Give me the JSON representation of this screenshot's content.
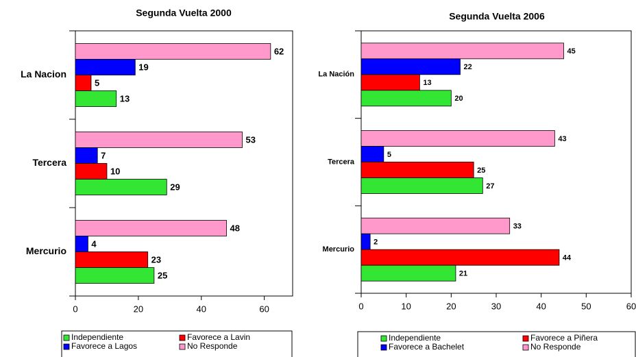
{
  "chart_data": [
    {
      "type": "bar",
      "orientation": "horizontal",
      "title": "Segunda Vuelta 2000",
      "categories": [
        "La Nacion",
        "Tercera",
        "Mercurio"
      ],
      "series": [
        {
          "name": "Independiente",
          "color": "#33e633",
          "values": [
            13,
            29,
            25
          ]
        },
        {
          "name": "Favorece a Lavin",
          "color": "#ff0000",
          "values": [
            5,
            10,
            23
          ]
        },
        {
          "name": "Favorece a Lagos",
          "color": "#0000ff",
          "values": [
            19,
            7,
            4
          ]
        },
        {
          "name": "No Responde",
          "color": "#ff99cc",
          "values": [
            62,
            53,
            48
          ]
        }
      ],
      "xlim": [
        0,
        69
      ],
      "xticks": [
        0,
        20,
        40,
        60
      ],
      "legend": "bottom"
    },
    {
      "type": "bar",
      "orientation": "horizontal",
      "title": "Segunda Vuelta 2006",
      "categories": [
        "La Nación",
        "Tercera",
        "Mercurio"
      ],
      "series": [
        {
          "name": "Independiente",
          "color": "#33e633",
          "values": [
            20,
            27,
            21
          ]
        },
        {
          "name": "Favorece a Piñera",
          "color": "#ff0000",
          "values": [
            13,
            25,
            44
          ]
        },
        {
          "name": "Favorece a Bachelet",
          "color": "#0000ff",
          "values": [
            22,
            5,
            2
          ]
        },
        {
          "name": "No Responde",
          "color": "#ff99cc",
          "values": [
            45,
            43,
            33
          ]
        }
      ],
      "xlim": [
        0,
        60
      ],
      "xticks": [
        0,
        10,
        20,
        30,
        40,
        50,
        60
      ],
      "legend": "bottom"
    }
  ]
}
